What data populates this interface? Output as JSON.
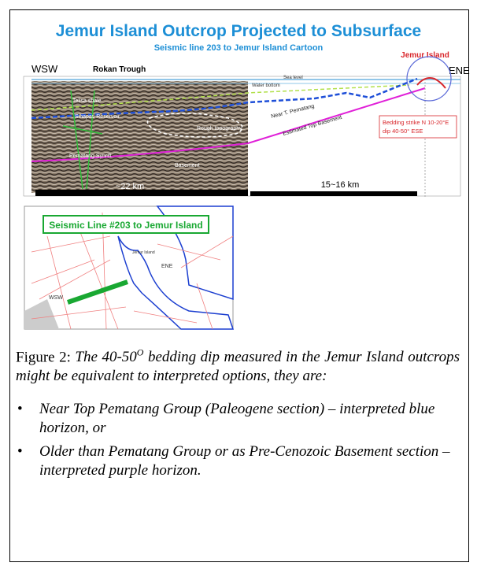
{
  "figure": {
    "title": "Jemur Island Outcrop Projected to Subsurface",
    "subtitle": "Seismic line 203 to Jemur Island Cartoon",
    "seismic": {
      "left_label": "WSW",
      "basin_label": "Rokan Trough",
      "island_label": "Jemur Island",
      "right_label": "ENE",
      "sea_level": "Sea level",
      "water_bottom": "Water bottom",
      "horizons": [
        "Telisa shale",
        "Sihapas Reservoir",
        "Rough topography",
        "Pematang Synrift",
        "Basement"
      ],
      "near_top": "Near T. Pematang",
      "est_top": "Estimated Top Basement",
      "bedding": [
        "Bedding strike N 10-20°E",
        "dip 40-50° ESE"
      ],
      "scale_left": "~22 km",
      "scale_right": "15~16 km"
    },
    "map": {
      "title": "Seismic Line #203 to Jemur Island",
      "island": "Jemur Island",
      "ene": "ENE",
      "wsw": "WSW"
    }
  },
  "caption": {
    "label": "Figure 2:",
    "text_1": "The 40-50",
    "superscript": "O",
    "text_2": " bedding dip measured in the Jemur Island outcrops might be equivalent to interpreted options, they are:"
  },
  "bullets": [
    "Near Top Pematang Group (Paleogene section) – interpreted blue horizon, or",
    "Older than Pematang Group or as Pre-Cenozoic Basement section – interpreted purple horizon."
  ]
}
